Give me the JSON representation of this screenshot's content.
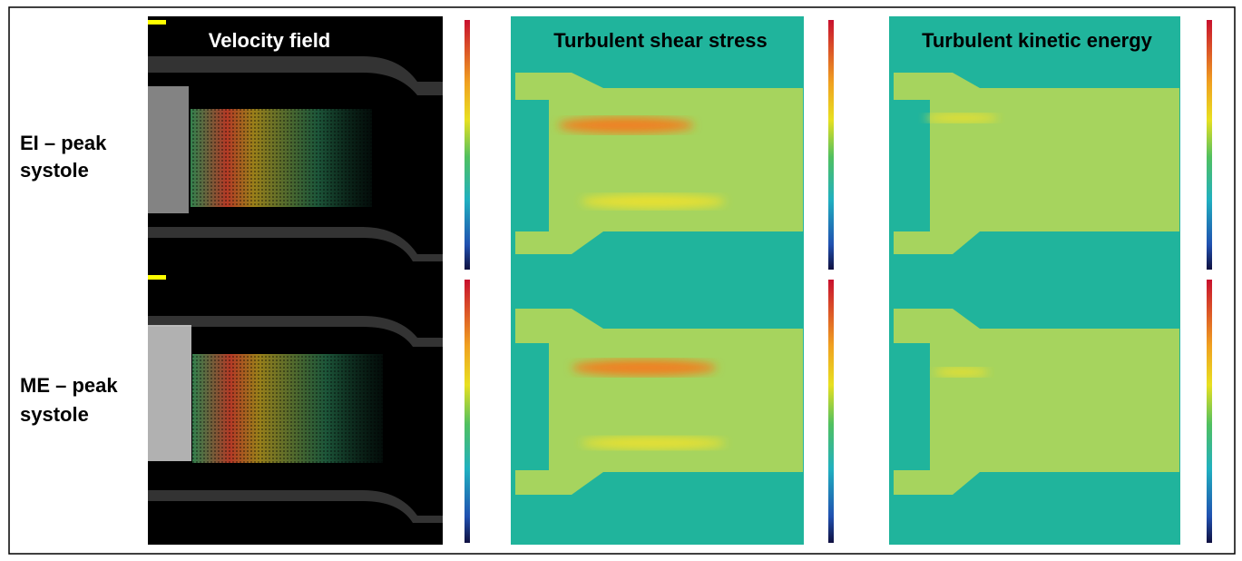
{
  "columns": [
    "Velocity field",
    "Turbulent shear stress",
    "Turbulent kinetic energy"
  ],
  "rows": [
    {
      "label_lines": [
        "EI – peak",
        "systole"
      ]
    },
    {
      "label_lines": [
        "ME – peak",
        "systole"
      ]
    }
  ]
}
